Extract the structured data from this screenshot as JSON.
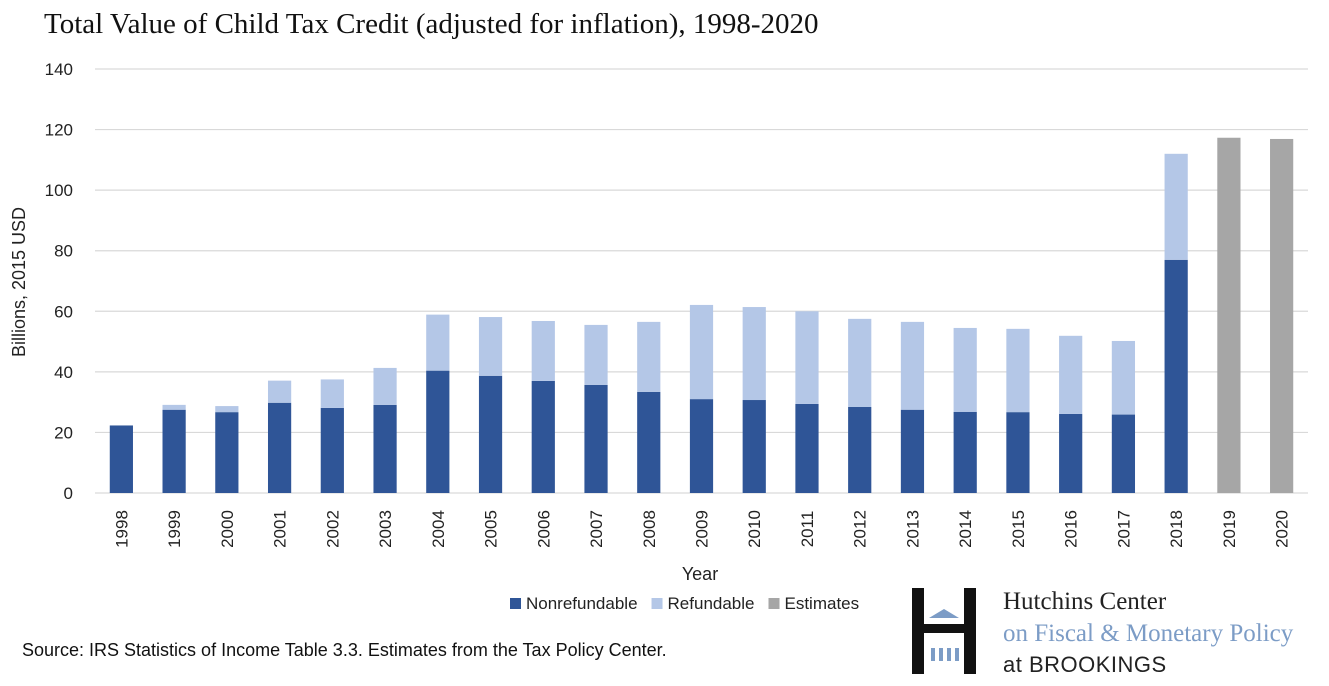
{
  "title": "Total Value of Child Tax Credit (adjusted for inflation), 1998-2020",
  "source": "Source: IRS Statistics of Income Table 3.3. Estimates from the Tax Policy Center.",
  "logo": {
    "line1": "Hutchins Center",
    "line2": "on Fiscal & Monetary Policy",
    "line3": "at BROOKINGS"
  },
  "chart_data": {
    "type": "bar",
    "stacked": true,
    "title": "Total Value of Child Tax Credit (adjusted for inflation), 1998-2020",
    "xlabel": "Year",
    "ylabel": "Billions, 2015 USD",
    "ylim": [
      0,
      140
    ],
    "yticks": [
      0,
      20,
      40,
      60,
      80,
      100,
      120,
      140
    ],
    "grid": true,
    "legend_position": "bottom",
    "categories": [
      "1998",
      "1999",
      "2000",
      "2001",
      "2002",
      "2003",
      "2004",
      "2005",
      "2006",
      "2007",
      "2008",
      "2009",
      "2010",
      "2011",
      "2012",
      "2013",
      "2014",
      "2015",
      "2016",
      "2017",
      "2018",
      "2019",
      "2020"
    ],
    "series": [
      {
        "name": "Nonrefundable",
        "color": "#2f5597",
        "values": [
          22.3,
          27.5,
          26.7,
          29.8,
          28.1,
          29.1,
          40.4,
          38.7,
          37.0,
          35.7,
          33.4,
          31.0,
          30.7,
          29.4,
          28.4,
          27.5,
          26.8,
          26.7,
          26.1,
          25.9,
          77.0,
          0,
          0
        ]
      },
      {
        "name": "Refundable",
        "color": "#b4c7e7",
        "values": [
          0,
          1.6,
          2.0,
          7.3,
          9.4,
          12.2,
          18.5,
          19.4,
          19.8,
          19.8,
          23.1,
          31.1,
          30.7,
          30.6,
          29.1,
          29.0,
          27.7,
          27.5,
          25.8,
          24.3,
          35.0,
          0,
          0
        ]
      },
      {
        "name": "Estimates",
        "color": "#a6a6a6",
        "values": [
          0,
          0,
          0,
          0,
          0,
          0,
          0,
          0,
          0,
          0,
          0,
          0,
          0,
          0,
          0,
          0,
          0,
          0,
          0,
          0,
          0,
          117.3,
          116.9
        ]
      }
    ]
  }
}
